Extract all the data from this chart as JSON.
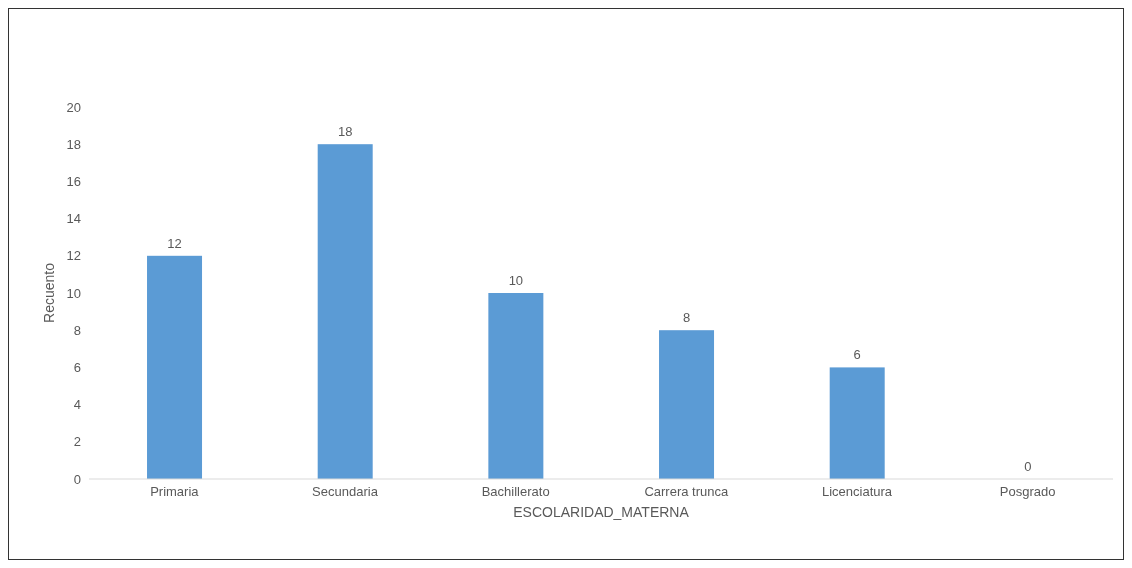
{
  "chart_data": {
    "type": "bar",
    "xlabel": "ESCOLARIDAD_MATERNA",
    "ylabel": "Recuento",
    "categories": [
      "Primaria",
      "Secundaria",
      "Bachillerato",
      "Carrera trunca",
      "Licenciatura",
      "Posgrado"
    ],
    "values": [
      12,
      18,
      10,
      8,
      6,
      0
    ],
    "color": "#5b9bd5",
    "ylim": [
      0,
      20
    ],
    "yticks": [
      0,
      2,
      4,
      6,
      8,
      10,
      12,
      14,
      16,
      18,
      20
    ],
    "grid": false,
    "data_labels": true
  }
}
